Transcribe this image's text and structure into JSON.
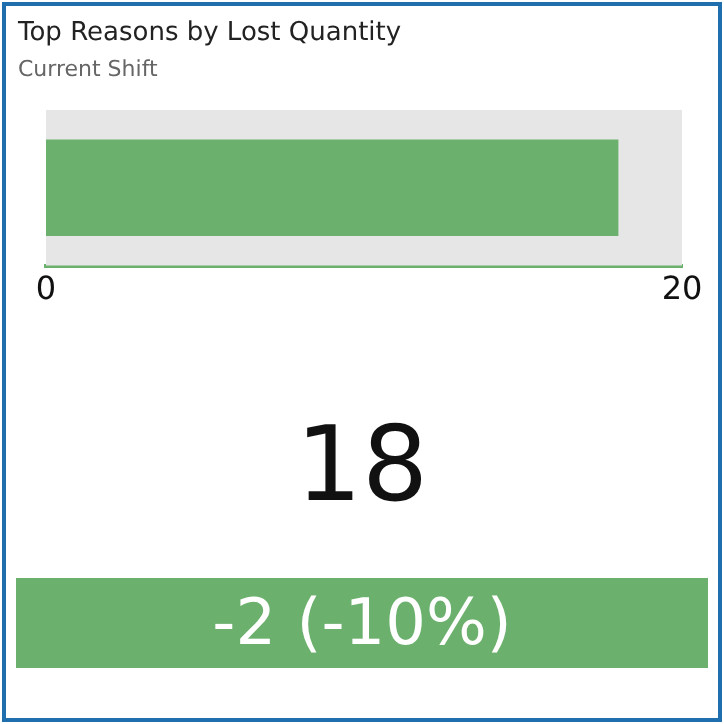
{
  "chart_data": {
    "type": "bar",
    "orientation": "horizontal",
    "title": "Top Reasons by Lost Quantity",
    "subtitle": "Current Shift",
    "categories": [
      null
    ],
    "series": [
      {
        "color": "#6bb06d",
        "values": [
          18
        ]
      }
    ],
    "xlim": [
      0,
      20
    ],
    "xticks": [
      0,
      20
    ],
    "grid": false,
    "legend": false,
    "bands": [
      {
        "axis": "x",
        "from": 0,
        "to": 20,
        "color": "#e6e6e6"
      }
    ],
    "annotations": [
      "18",
      "-2 (-10%)"
    ]
  }
}
